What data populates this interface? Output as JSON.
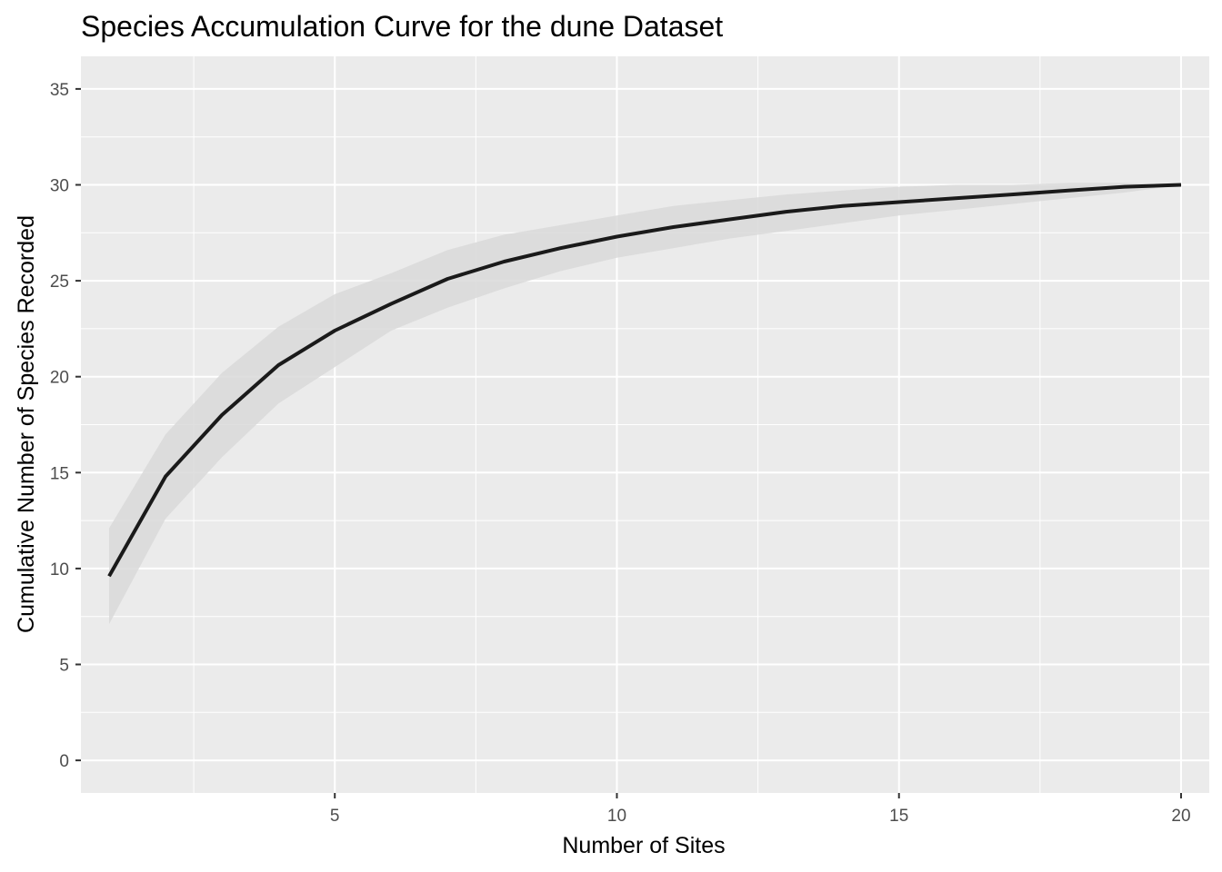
{
  "chart_data": {
    "type": "area",
    "title": "Species Accumulation Curve for the dune Dataset",
    "xlabel": "Number of Sites",
    "ylabel": "Cumulative Number of Species Recorded",
    "xlim": [
      0.5,
      20.5
    ],
    "ylim": [
      -1.7,
      36.7
    ],
    "x_ticks": [
      5,
      10,
      15,
      20
    ],
    "x_minor_ticks": [
      2.5,
      7.5,
      12.5,
      17.5
    ],
    "y_ticks": [
      0,
      5,
      10,
      15,
      20,
      25,
      30,
      35
    ],
    "y_minor_ticks": [
      2.5,
      7.5,
      12.5,
      17.5,
      22.5,
      27.5,
      32.5
    ],
    "grid": true,
    "colors": {
      "panel": "#ebebeb",
      "grid": "#ffffff",
      "line": "#1a1a1a",
      "ribbon": "#d9d9d9"
    },
    "series": [
      {
        "x": [
          1,
          2,
          3,
          4,
          5,
          6,
          7,
          8,
          9,
          10,
          11,
          12,
          13,
          14,
          15,
          16,
          17,
          18,
          19,
          20
        ],
        "values": [
          9.6,
          14.8,
          18.0,
          20.6,
          22.4,
          23.8,
          25.1,
          26.0,
          26.7,
          27.3,
          27.8,
          28.2,
          28.6,
          28.9,
          29.1,
          29.3,
          29.5,
          29.7,
          29.9,
          30.0
        ],
        "lower": [
          7.1,
          12.6,
          15.8,
          18.6,
          20.5,
          22.4,
          23.6,
          24.6,
          25.5,
          26.2,
          26.7,
          27.2,
          27.6,
          28.0,
          28.4,
          28.7,
          29.0,
          29.3,
          29.6,
          30.0
        ],
        "upper": [
          12.1,
          17.0,
          20.2,
          22.6,
          24.3,
          25.4,
          26.6,
          27.4,
          27.9,
          28.4,
          28.9,
          29.2,
          29.5,
          29.7,
          29.9,
          30.0,
          30.0,
          30.1,
          30.1,
          30.0
        ]
      }
    ]
  }
}
